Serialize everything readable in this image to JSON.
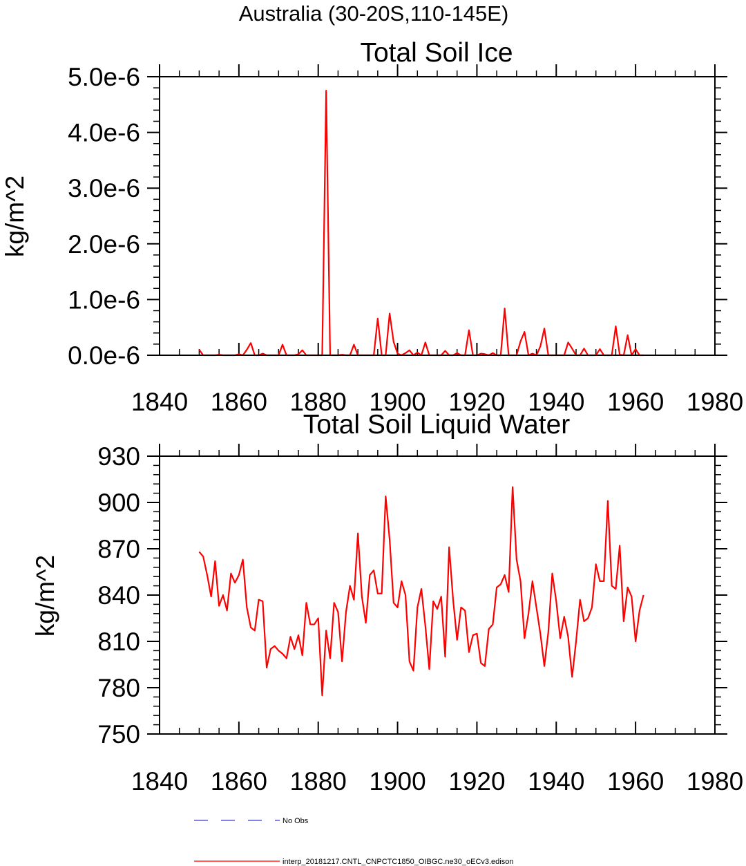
{
  "main_title": "Australia (30-20S,110-145E)",
  "legend": [
    {
      "label": "No Obs",
      "color": "#3b3bd6",
      "style": "dashed"
    },
    {
      "label": "interp_20181217.CNTL_CNPCTC1850_OIBGC.ne30_oECv3.edison",
      "color": "#ff0000",
      "style": "solid"
    }
  ],
  "chart_data": [
    {
      "type": "line",
      "title": "Total Soil Ice",
      "ylabel": "kg/m^2",
      "xlabel": "",
      "xlim": [
        1840,
        1980
      ],
      "ylim": [
        0,
        5e-06
      ],
      "xticks": [
        1840,
        1860,
        1880,
        1900,
        1920,
        1940,
        1960,
        1980
      ],
      "xtick_labels": [
        "1840",
        "1860",
        "1880",
        "1900",
        "1920",
        "1940",
        "1960",
        "1980"
      ],
      "yticks": [
        0,
        1e-06,
        2e-06,
        3e-06,
        4e-06,
        5e-06
      ],
      "ytick_labels": [
        "0.0e-6",
        "1.0e-6",
        "2.0e-6",
        "3.0e-6",
        "4.0e-6",
        "5.0e-6"
      ],
      "grid": false,
      "series": [
        {
          "name": "interp_20181217.CNTL_CNPCTC1850_OIBGC.ne30_oECv3.edison",
          "color": "#ff0000",
          "x": [
            1850,
            1851,
            1852,
            1853,
            1854,
            1855,
            1856,
            1857,
            1858,
            1859,
            1860,
            1861,
            1862,
            1863,
            1864,
            1865,
            1866,
            1867,
            1868,
            1869,
            1870,
            1871,
            1872,
            1873,
            1874,
            1875,
            1876,
            1877,
            1878,
            1879,
            1880,
            1881,
            1882,
            1883,
            1884,
            1885,
            1886,
            1887,
            1888,
            1889,
            1890,
            1891,
            1892,
            1893,
            1894,
            1895,
            1896,
            1897,
            1898,
            1899,
            1900,
            1901,
            1902,
            1903,
            1904,
            1905,
            1906,
            1907,
            1908,
            1909,
            1910,
            1911,
            1912,
            1913,
            1914,
            1915,
            1916,
            1917,
            1918,
            1919,
            1920,
            1921,
            1922,
            1923,
            1924,
            1925,
            1926,
            1927,
            1928,
            1929,
            1930,
            1931,
            1932,
            1933,
            1934,
            1935,
            1936,
            1937,
            1938,
            1939,
            1940,
            1941,
            1942,
            1943,
            1944,
            1945,
            1946,
            1947,
            1948,
            1949,
            1950,
            1951,
            1952,
            1953,
            1954,
            1955,
            1956,
            1957,
            1958,
            1959,
            1960,
            1961,
            1962
          ],
          "values": [
            1e-07,
            0,
            0,
            0,
            0,
            1e-08,
            0,
            0,
            0,
            0,
            2e-08,
            0,
            1e-07,
            2.2e-07,
            0,
            0,
            3e-08,
            0,
            0,
            0,
            0,
            1.9e-07,
            0,
            0,
            0,
            2e-08,
            9e-08,
            0,
            0,
            0,
            0,
            0,
            4.75e-06,
            0,
            0,
            0,
            1e-08,
            0,
            0,
            1.9e-07,
            0,
            0,
            0,
            0,
            0,
            6.6e-07,
            0,
            0,
            7.5e-07,
            2.4e-07,
            3e-08,
            0,
            4e-08,
            9e-08,
            0,
            5e-08,
            0,
            2.3e-07,
            0,
            0,
            0,
            0,
            8e-08,
            0,
            0,
            4e-08,
            0,
            0,
            4.5e-07,
            0,
            0,
            3e-08,
            2e-08,
            0,
            4e-08,
            0,
            0,
            8.4e-07,
            0,
            0,
            0,
            2.5e-07,
            4.2e-07,
            0,
            3e-08,
            0,
            1.6e-07,
            4.8e-07,
            0,
            0,
            0,
            0,
            0,
            2.3e-07,
            1.2e-07,
            0,
            0,
            1.2e-07,
            0,
            0,
            0,
            1.1e-07,
            0,
            0,
            0,
            5.2e-07,
            1e-08,
            0,
            3.6e-07,
            0,
            1.1e-07,
            0,
            0
          ]
        }
      ]
    },
    {
      "type": "line",
      "title": "Total Soil Liquid Water",
      "ylabel": "kg/m^2",
      "xlabel": "",
      "xlim": [
        1840,
        1980
      ],
      "ylim": [
        750,
        930
      ],
      "xticks": [
        1840,
        1860,
        1880,
        1900,
        1920,
        1940,
        1960,
        1980
      ],
      "xtick_labels": [
        "1840",
        "1860",
        "1880",
        "1900",
        "1920",
        "1940",
        "1960",
        "1980"
      ],
      "yticks": [
        750,
        780,
        810,
        840,
        870,
        900,
        930
      ],
      "ytick_labels": [
        "750",
        "780",
        "810",
        "840",
        "870",
        "900",
        "930"
      ],
      "grid": false,
      "series": [
        {
          "name": "interp_20181217.CNTL_CNPCTC1850_OIBGC.ne30_oECv3.edison",
          "color": "#ff0000",
          "x": [
            1850,
            1851,
            1852,
            1853,
            1854,
            1855,
            1856,
            1857,
            1858,
            1859,
            1860,
            1861,
            1862,
            1863,
            1864,
            1865,
            1866,
            1867,
            1868,
            1869,
            1870,
            1871,
            1872,
            1873,
            1874,
            1875,
            1876,
            1877,
            1878,
            1879,
            1880,
            1881,
            1882,
            1883,
            1884,
            1885,
            1886,
            1887,
            1888,
            1889,
            1890,
            1891,
            1892,
            1893,
            1894,
            1895,
            1896,
            1897,
            1898,
            1899,
            1900,
            1901,
            1902,
            1903,
            1904,
            1905,
            1906,
            1907,
            1908,
            1909,
            1910,
            1911,
            1912,
            1913,
            1914,
            1915,
            1916,
            1917,
            1918,
            1919,
            1920,
            1921,
            1922,
            1923,
            1924,
            1925,
            1926,
            1927,
            1928,
            1929,
            1930,
            1931,
            1932,
            1933,
            1934,
            1935,
            1936,
            1937,
            1938,
            1939,
            1940,
            1941,
            1942,
            1943,
            1944,
            1945,
            1946,
            1947,
            1948,
            1949,
            1950,
            1951,
            1952,
            1953,
            1954,
            1955,
            1956,
            1957,
            1958,
            1959,
            1960,
            1961,
            1962
          ],
          "values": [
            868,
            865,
            853,
            839,
            862,
            833,
            840,
            830,
            854,
            848,
            853,
            863,
            832,
            819,
            817,
            837,
            836,
            793,
            805,
            807,
            804,
            802,
            799,
            813,
            805,
            814,
            801,
            835,
            821,
            821,
            825,
            775,
            817,
            799,
            835,
            829,
            797,
            829,
            846,
            837,
            880,
            839,
            822,
            853,
            856,
            841,
            841,
            904,
            876,
            835,
            832,
            849,
            840,
            797,
            791,
            832,
            844,
            820,
            792,
            836,
            831,
            839,
            800,
            871,
            837,
            811,
            832,
            830,
            803,
            814,
            815,
            796,
            794,
            818,
            821,
            845,
            847,
            853,
            842,
            910,
            863,
            849,
            812,
            828,
            849,
            832,
            815,
            794,
            816,
            854,
            836,
            812,
            826,
            813,
            787,
            810,
            837,
            823,
            825,
            832,
            860,
            849,
            849,
            901,
            846,
            844,
            872,
            823,
            845,
            839,
            810,
            830,
            840
          ]
        }
      ]
    }
  ]
}
